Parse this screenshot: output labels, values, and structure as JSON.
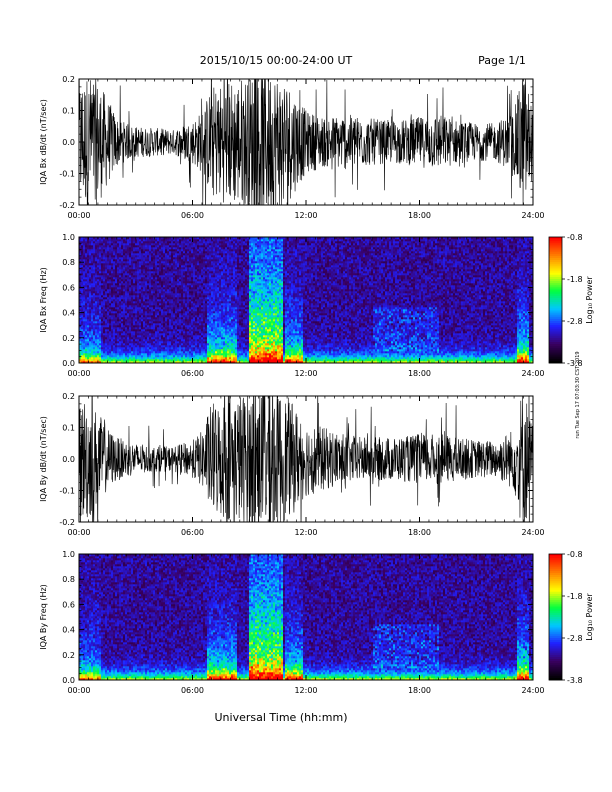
{
  "header": {
    "title": "2015/10/15   00:00-24:00 UT",
    "page": "Page 1/1"
  },
  "side_note": "run Tue Sep 17 07:03:30 CST 2019",
  "xaxis": {
    "label": "Universal Time (hh:mm)",
    "ticks": [
      "00:00",
      "06:00",
      "12:00",
      "18:00",
      "24:00"
    ],
    "range_hours": [
      0,
      24
    ]
  },
  "colorbar": {
    "label": "Log₁₀ Power",
    "ticks": [
      "-0.8",
      "-1.8",
      "-2.8",
      "-3.8"
    ],
    "range": [
      -3.8,
      -0.8
    ],
    "colors": [
      "#000000",
      "#3a0060",
      "#2020ff",
      "#00c8ff",
      "#00ff40",
      "#ffff00",
      "#ff8000",
      "#ff0000"
    ]
  },
  "chart_data": [
    {
      "type": "line",
      "ylabel": "IQA Bx dB/dt (nT/sec)",
      "ylim": [
        -0.2,
        0.2
      ],
      "yticks": [
        "-0.2",
        "-0.1",
        "0.0",
        "0.1",
        "0.2"
      ],
      "activity_profile": {
        "hours": [
          0,
          0.5,
          1,
          1.5,
          2,
          2.5,
          3,
          4,
          5,
          6,
          6.5,
          7,
          8,
          9,
          10,
          11,
          12,
          13,
          14,
          15,
          16,
          17,
          18,
          19,
          20,
          21,
          22,
          23,
          23.5,
          24
        ],
        "amplitude": [
          0.2,
          0.22,
          0.2,
          0.14,
          0.08,
          0.06,
          0.05,
          0.045,
          0.04,
          0.07,
          0.1,
          0.18,
          0.2,
          0.22,
          0.25,
          0.2,
          0.1,
          0.08,
          0.09,
          0.08,
          0.07,
          0.07,
          0.08,
          0.09,
          0.07,
          0.06,
          0.06,
          0.1,
          0.25,
          0.1
        ]
      }
    },
    {
      "type": "heatmap",
      "ylabel": "IQA Bx Freq (Hz)",
      "ylim": [
        0.0,
        1.0
      ],
      "yticks": [
        "0.0",
        "0.2",
        "0.4",
        "0.6",
        "0.8",
        "1.0"
      ],
      "value_range": [
        -3.8,
        -0.8
      ]
    },
    {
      "type": "line",
      "ylabel": "IQA By dB/dt (nT/sec)",
      "ylim": [
        -0.2,
        0.2
      ],
      "yticks": [
        "-0.2",
        "-0.1",
        "0.0",
        "0.1",
        "0.2"
      ],
      "activity_profile": {
        "hours": [
          0,
          0.5,
          1,
          1.5,
          2,
          2.5,
          3,
          4,
          5,
          6,
          6.5,
          7,
          8,
          9,
          10,
          11,
          12,
          13,
          14,
          15,
          16,
          17,
          18,
          19,
          20,
          21,
          22,
          23,
          23.5,
          24
        ],
        "amplitude": [
          0.2,
          0.2,
          0.15,
          0.1,
          0.07,
          0.06,
          0.05,
          0.04,
          0.04,
          0.06,
          0.09,
          0.18,
          0.2,
          0.22,
          0.24,
          0.2,
          0.12,
          0.1,
          0.08,
          0.07,
          0.07,
          0.07,
          0.08,
          0.08,
          0.07,
          0.06,
          0.06,
          0.1,
          0.25,
          0.1
        ]
      }
    },
    {
      "type": "heatmap",
      "ylabel": "IQA By Freq (Hz)",
      "ylim": [
        0.0,
        1.0
      ],
      "yticks": [
        "0.0",
        "0.2",
        "0.4",
        "0.6",
        "0.8",
        "1.0"
      ],
      "value_range": [
        -3.8,
        -0.8
      ]
    }
  ]
}
